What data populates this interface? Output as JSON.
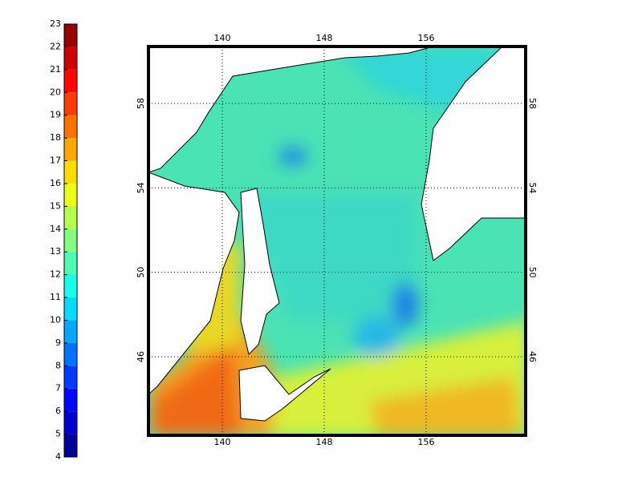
{
  "colorbar": {
    "ticks": [
      4,
      5,
      6,
      7,
      8,
      9,
      10,
      11,
      12,
      13,
      14,
      15,
      16,
      17,
      18,
      19,
      20,
      21,
      22,
      23
    ]
  },
  "map": {
    "lon_ticks": [
      140,
      148,
      156
    ],
    "lat_ticks": [
      58,
      54,
      50,
      46
    ]
  }
}
